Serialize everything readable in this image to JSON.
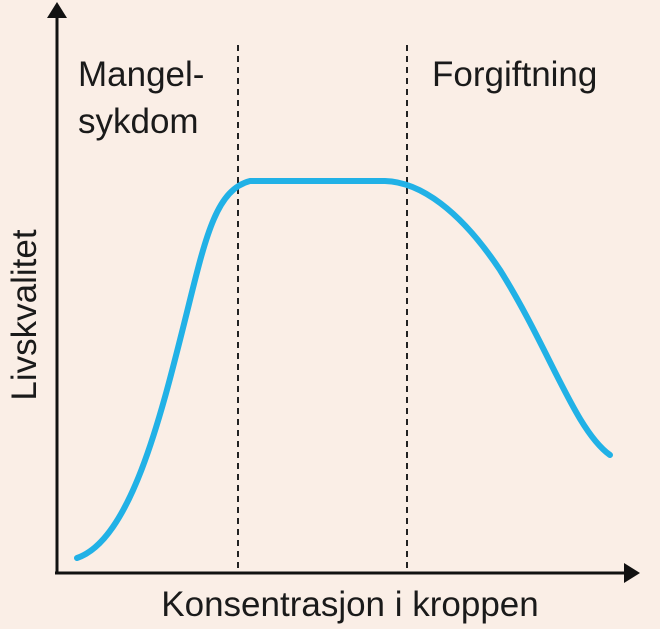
{
  "regions": [
    {
      "label_lines": [
        "Mangel-",
        "sykdom"
      ]
    },
    {
      "label_lines": [
        "Forgiftning"
      ]
    }
  ],
  "axes": {
    "y_label": "Livskvalitet",
    "x_label": "Konsentrasjon i kroppen"
  }
}
